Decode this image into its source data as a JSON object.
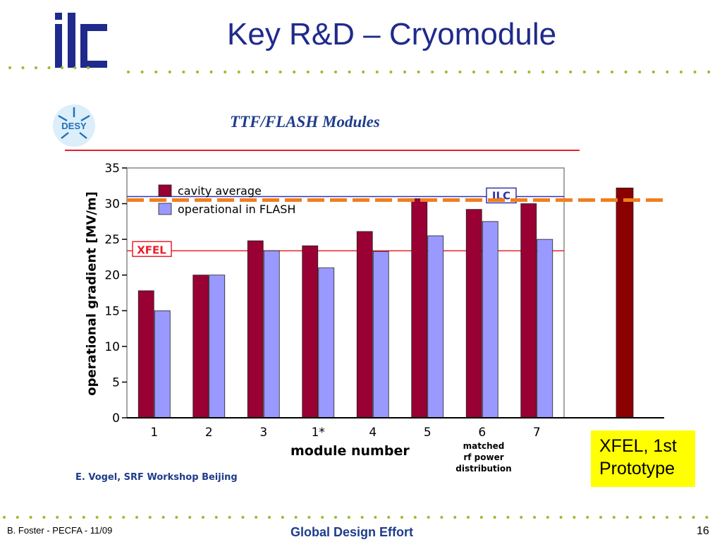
{
  "slide": {
    "title": "Key R&D – Cryomodule",
    "logo_text": "ilc",
    "footer_left": "B. Foster - PECFA - 11/09",
    "footer_center": "Global Design Effort",
    "page_number": "16"
  },
  "figure": {
    "heading": "TTF/FLASH Modules",
    "institute_logo_text": "DESY",
    "credit": "E. Vogel, SRF Workshop Beijing",
    "xfel_callout": "XFEL, 1st\nPrototype",
    "module6_note": "matched\nrf power\ndistribution"
  },
  "colors": {
    "title_blue": "#1f2a8c",
    "cavity_average": "#990033",
    "operational": "#9999ff",
    "reference_line": "#e8202a",
    "orange_dashed": "#f07f1e",
    "xfel_bar": "#8b0000",
    "callout_bg": "#ffff00",
    "dots": "#9bbb2e"
  },
  "chart_data": {
    "type": "bar",
    "categories": [
      "1",
      "2",
      "3",
      "1*",
      "4",
      "5",
      "6",
      "7"
    ],
    "series": [
      {
        "name": "cavity average",
        "color": "#990033",
        "values": [
          17.8,
          20.0,
          24.8,
          24.1,
          26.1,
          30.7,
          29.2,
          30.0
        ]
      },
      {
        "name": "operational in FLASH",
        "color": "#9999ff",
        "values": [
          15.0,
          20.0,
          23.4,
          21.0,
          23.3,
          25.5,
          27.5,
          25.0
        ]
      }
    ],
    "extra_bar": {
      "value": 32.2,
      "color": "#8b0000"
    },
    "reference_lines": [
      {
        "label": "XFEL",
        "value": 23.4
      },
      {
        "label": "ILC",
        "value": 31.0
      },
      {
        "label": "",
        "value": 30.5,
        "style": "dashed",
        "color": "#f07f1e"
      }
    ],
    "xlabel": "module number",
    "ylabel": "operational gradient [MV/m]",
    "ylim": [
      0,
      35
    ],
    "yticks": [
      0,
      5,
      10,
      15,
      20,
      25,
      30,
      35
    ],
    "legend_position": "top-left",
    "grid": false
  }
}
